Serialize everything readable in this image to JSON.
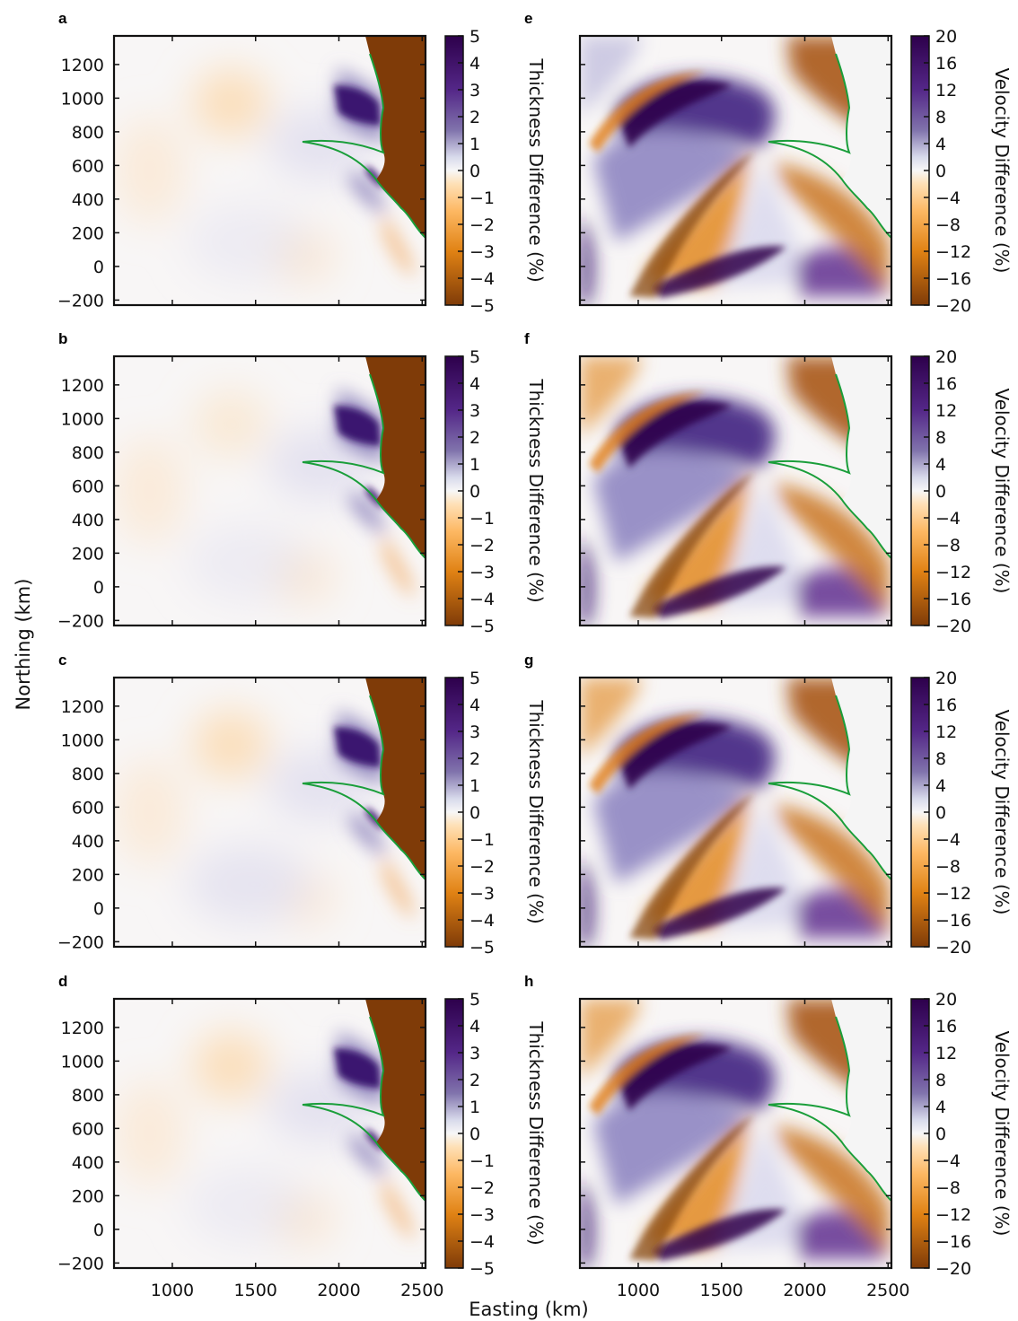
{
  "figure": {
    "xlabel": "Easting (km)",
    "ylabel": "Northing (km)"
  },
  "colors": {
    "purple_max": "#2d004b",
    "purple_mid": "#8073ac",
    "neutral": "#f7f7f7",
    "orange_mid": "#e08214",
    "orange_max": "#7f3b08",
    "grounding_line": "#1a9e3a"
  },
  "chart_data": [
    {
      "panel": "a",
      "type": "heatmap",
      "variable": "thickness",
      "colorbar_label": "Thickness Difference (%)",
      "colorbar_range": [
        -5,
        5
      ],
      "colorbar_ticks": [
        "5",
        "4",
        "3",
        "2",
        "1",
        "0",
        "−1",
        "−2",
        "−3",
        "−4",
        "−5"
      ],
      "xlim": [
        650,
        2520
      ],
      "ylim": [
        -230,
        1370
      ],
      "xticks": [
        "1000",
        "1500",
        "2000",
        "2500"
      ],
      "yticks": [
        "1200",
        "1000",
        "800",
        "600",
        "400",
        "200",
        "0",
        "−200"
      ]
    },
    {
      "panel": "b",
      "type": "heatmap",
      "variable": "thickness",
      "colorbar_label": "Thickness Difference (%)",
      "colorbar_range": [
        -5,
        5
      ],
      "colorbar_ticks": [
        "5",
        "4",
        "3",
        "2",
        "1",
        "0",
        "−1",
        "−2",
        "−3",
        "−4",
        "−5"
      ],
      "xlim": [
        650,
        2520
      ],
      "ylim": [
        -230,
        1370
      ],
      "xticks": [
        "1000",
        "1500",
        "2000",
        "2500"
      ],
      "yticks": [
        "1200",
        "1000",
        "800",
        "600",
        "400",
        "200",
        "0",
        "−200"
      ]
    },
    {
      "panel": "c",
      "type": "heatmap",
      "variable": "thickness",
      "colorbar_label": "Thickness Difference (%)",
      "colorbar_range": [
        -5,
        5
      ],
      "colorbar_ticks": [
        "5",
        "4",
        "3",
        "2",
        "1",
        "0",
        "−1",
        "−2",
        "−3",
        "−4",
        "−5"
      ],
      "xlim": [
        650,
        2520
      ],
      "ylim": [
        -230,
        1370
      ],
      "xticks": [
        "1000",
        "1500",
        "2000",
        "2500"
      ],
      "yticks": [
        "1200",
        "1000",
        "800",
        "600",
        "400",
        "200",
        "0",
        "−200"
      ]
    },
    {
      "panel": "d",
      "type": "heatmap",
      "variable": "thickness",
      "colorbar_label": "Thickness Difference (%)",
      "colorbar_range": [
        -5,
        5
      ],
      "colorbar_ticks": [
        "5",
        "4",
        "3",
        "2",
        "1",
        "0",
        "−1",
        "−2",
        "−3",
        "−4",
        "−5"
      ],
      "xlim": [
        650,
        2520
      ],
      "ylim": [
        -230,
        1370
      ],
      "xticks": [
        "1000",
        "1500",
        "2000",
        "2500"
      ],
      "yticks": [
        "1200",
        "1000",
        "800",
        "600",
        "400",
        "200",
        "0",
        "−200"
      ]
    },
    {
      "panel": "e",
      "type": "heatmap",
      "variable": "velocity",
      "colorbar_label": "Velocity Difference (%)",
      "colorbar_range": [
        -20,
        20
      ],
      "colorbar_ticks": [
        "20",
        "16",
        "12",
        "8",
        "4",
        "0",
        "−4",
        "−8",
        "−12",
        "−16",
        "−20"
      ],
      "xlim": [
        650,
        2520
      ],
      "ylim": [
        -230,
        1370
      ],
      "xticks": [
        "1000",
        "1500",
        "2000",
        "2500"
      ]
    },
    {
      "panel": "f",
      "type": "heatmap",
      "variable": "velocity",
      "colorbar_label": "Velocity Difference (%)",
      "colorbar_range": [
        -20,
        20
      ],
      "colorbar_ticks": [
        "20",
        "16",
        "12",
        "8",
        "4",
        "0",
        "−4",
        "−8",
        "−12",
        "−16",
        "−20"
      ],
      "xlim": [
        650,
        2520
      ],
      "ylim": [
        -230,
        1370
      ],
      "xticks": [
        "1000",
        "1500",
        "2000",
        "2500"
      ]
    },
    {
      "panel": "g",
      "type": "heatmap",
      "variable": "velocity",
      "colorbar_label": "Velocity Difference (%)",
      "colorbar_range": [
        -20,
        20
      ],
      "colorbar_ticks": [
        "20",
        "16",
        "12",
        "8",
        "4",
        "0",
        "−4",
        "−8",
        "−12",
        "−16",
        "−20"
      ],
      "xlim": [
        650,
        2520
      ],
      "ylim": [
        -230,
        1370
      ],
      "xticks": [
        "1000",
        "1500",
        "2000",
        "2500"
      ]
    },
    {
      "panel": "h",
      "type": "heatmap",
      "variable": "velocity",
      "colorbar_label": "Velocity Difference (%)",
      "colorbar_range": [
        -20,
        20
      ],
      "colorbar_ticks": [
        "20",
        "16",
        "12",
        "8",
        "4",
        "0",
        "−4",
        "−8",
        "−12",
        "−16",
        "−20"
      ],
      "xlim": [
        650,
        2520
      ],
      "ylim": [
        -230,
        1370
      ],
      "xticks": [
        "1000",
        "1500",
        "2000",
        "2500"
      ]
    }
  ]
}
